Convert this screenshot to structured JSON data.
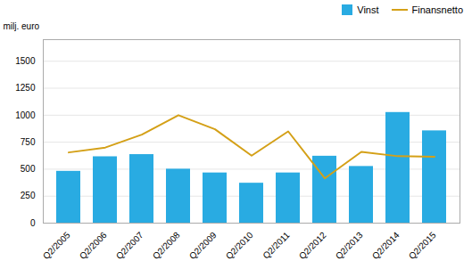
{
  "chart_data": {
    "type": "bar",
    "ylabel": "milj. euro",
    "categories": [
      "Q2/2005",
      "Q2/2006",
      "Q2/2007",
      "Q2/2008",
      "Q2/2009",
      "Q2/2010",
      "Q2/2011",
      "Q2/2012",
      "Q2/2013",
      "Q2/2014",
      "Q2/2015"
    ],
    "series": [
      {
        "name": "Vinst",
        "type": "bar",
        "color": "#29ABE2",
        "values": [
          480,
          615,
          635,
          500,
          465,
          370,
          465,
          620,
          525,
          1025,
          855
        ]
      },
      {
        "name": "Finansnetto",
        "type": "line",
        "color": "#D4A017",
        "values": [
          655,
          700,
          820,
          1000,
          870,
          625,
          850,
          415,
          660,
          620,
          615
        ]
      }
    ],
    "ylim": [
      0,
      1700
    ],
    "yticks": [
      0,
      250,
      500,
      750,
      1000,
      1250,
      1500
    ],
    "grid": true,
    "legend": "upper right"
  }
}
